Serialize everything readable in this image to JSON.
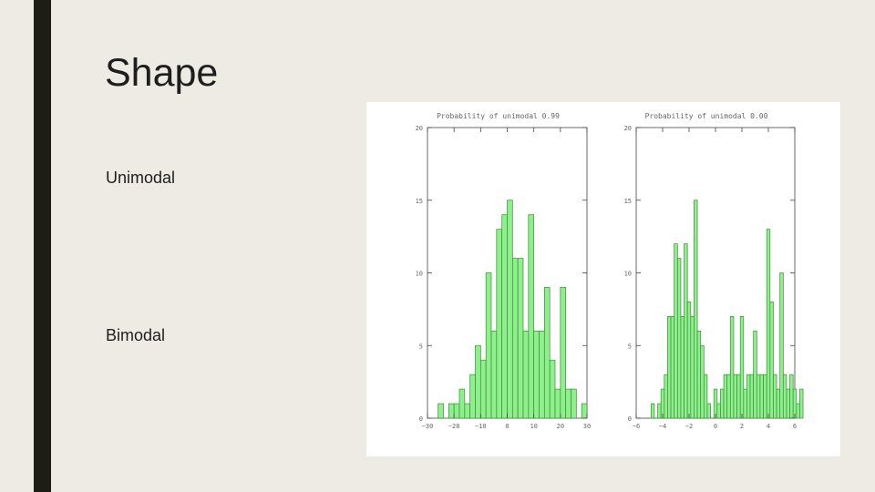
{
  "slide": {
    "title": "Shape",
    "bullets": [
      "Unimodal",
      "Bimodal"
    ]
  },
  "colors": {
    "accent_bar": "#1c1d14",
    "background": "#eeebe4",
    "bar_fill": "#8ef08a",
    "bar_stroke": "#3e8a3c"
  },
  "chart_data": [
    {
      "type": "bar",
      "title": "Probability of unimodal 0.99",
      "xlim": [
        -30,
        30
      ],
      "ylim": [
        0,
        20
      ],
      "xticks": [
        -30,
        -20,
        -10,
        0,
        10,
        20,
        30
      ],
      "yticks": [
        0,
        5,
        10,
        15,
        20
      ],
      "bin_width": 2,
      "bins": [
        {
          "x": -25,
          "y": 1
        },
        {
          "x": -21,
          "y": 1
        },
        {
          "x": -19,
          "y": 1
        },
        {
          "x": -17,
          "y": 2
        },
        {
          "x": -15,
          "y": 1
        },
        {
          "x": -13,
          "y": 3
        },
        {
          "x": -11,
          "y": 5
        },
        {
          "x": -9,
          "y": 4
        },
        {
          "x": -7,
          "y": 10
        },
        {
          "x": -5,
          "y": 6
        },
        {
          "x": -3,
          "y": 13
        },
        {
          "x": -1,
          "y": 14
        },
        {
          "x": 1,
          "y": 15
        },
        {
          "x": 3,
          "y": 11
        },
        {
          "x": 5,
          "y": 11
        },
        {
          "x": 7,
          "y": 6
        },
        {
          "x": 9,
          "y": 14
        },
        {
          "x": 11,
          "y": 6
        },
        {
          "x": 13,
          "y": 6
        },
        {
          "x": 15,
          "y": 9
        },
        {
          "x": 17,
          "y": 4
        },
        {
          "x": 19,
          "y": 2
        },
        {
          "x": 21,
          "y": 9
        },
        {
          "x": 23,
          "y": 2
        },
        {
          "x": 25,
          "y": 2
        },
        {
          "x": 29,
          "y": 1
        }
      ]
    },
    {
      "type": "bar",
      "title": "Probability of unimodal 0.00",
      "xlim": [
        -6,
        6
      ],
      "ylim": [
        0,
        20
      ],
      "xticks": [
        -6,
        -4,
        -2,
        0,
        2,
        4,
        6
      ],
      "yticks": [
        0,
        5,
        10,
        15,
        20
      ],
      "bin_width": 0.25,
      "bins": [
        {
          "x": -4.75,
          "y": 1
        },
        {
          "x": -4.25,
          "y": 1
        },
        {
          "x": -4,
          "y": 2
        },
        {
          "x": -3.75,
          "y": 3
        },
        {
          "x": -3.5,
          "y": 7
        },
        {
          "x": -3.25,
          "y": 7
        },
        {
          "x": -3,
          "y": 12
        },
        {
          "x": -2.75,
          "y": 11
        },
        {
          "x": -2.5,
          "y": 7
        },
        {
          "x": -2.25,
          "y": 12
        },
        {
          "x": -2,
          "y": 8
        },
        {
          "x": -1.75,
          "y": 7
        },
        {
          "x": -1.5,
          "y": 15
        },
        {
          "x": -1.25,
          "y": 6
        },
        {
          "x": -1,
          "y": 5
        },
        {
          "x": -0.75,
          "y": 3
        },
        {
          "x": -0.5,
          "y": 1
        },
        {
          "x": 0,
          "y": 2
        },
        {
          "x": 0.25,
          "y": 1
        },
        {
          "x": 0.5,
          "y": 2
        },
        {
          "x": 0.75,
          "y": 3
        },
        {
          "x": 1,
          "y": 3
        },
        {
          "x": 1.25,
          "y": 7
        },
        {
          "x": 1.5,
          "y": 3
        },
        {
          "x": 1.75,
          "y": 3
        },
        {
          "x": 2,
          "y": 7
        },
        {
          "x": 2.25,
          "y": 2
        },
        {
          "x": 2.5,
          "y": 3
        },
        {
          "x": 2.75,
          "y": 3
        },
        {
          "x": 3,
          "y": 6
        },
        {
          "x": 3.25,
          "y": 3
        },
        {
          "x": 3.5,
          "y": 3
        },
        {
          "x": 3.75,
          "y": 3
        },
        {
          "x": 4,
          "y": 13
        },
        {
          "x": 4.25,
          "y": 8
        },
        {
          "x": 4.5,
          "y": 3
        },
        {
          "x": 4.75,
          "y": 2
        },
        {
          "x": 5,
          "y": 10
        },
        {
          "x": 5.25,
          "y": 3
        },
        {
          "x": 5.5,
          "y": 2
        },
        {
          "x": 5.75,
          "y": 3
        },
        {
          "x": 6,
          "y": 2
        },
        {
          "x": 6.25,
          "y": 1
        },
        {
          "x": 6.5,
          "y": 2
        }
      ]
    }
  ]
}
